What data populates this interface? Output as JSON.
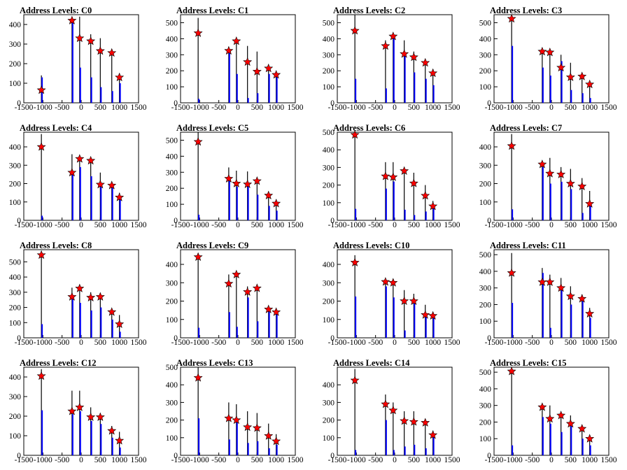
{
  "figure": {
    "x_ticks": [
      "-1500",
      "-1000",
      "-500",
      "0",
      "500",
      "1000",
      "1500"
    ],
    "xlim": [
      -1500,
      1500
    ],
    "colors": {
      "blue": "#0000ff",
      "black": "#000000",
      "star_fill": "#ff0000",
      "star_edge": "#000000"
    }
  },
  "chart_data": [
    {
      "type": "bar",
      "title": "Address Levels: C0",
      "ylim": [
        0,
        450
      ],
      "yticks": [
        100,
        200,
        300,
        400
      ],
      "x": [
        -1040,
        -240,
        -40,
        250,
        500,
        800,
        1000
      ],
      "black": [
        140,
        430,
        440,
        350,
        330,
        270,
        150
      ],
      "blue": [
        130,
        420,
        180,
        130,
        80,
        60,
        100
      ],
      "stars": [
        65,
        420,
        330,
        315,
        265,
        255,
        130
      ]
    },
    {
      "type": "bar",
      "title": "Address Levels: C1",
      "ylim": [
        0,
        550
      ],
      "yticks": [
        100,
        200,
        300,
        400,
        500
      ],
      "x": [
        -1040,
        -240,
        -40,
        250,
        500,
        800,
        1000
      ],
      "black": [
        530,
        350,
        400,
        355,
        320,
        210,
        180
      ],
      "blue": [
        25,
        330,
        180,
        30,
        60,
        180,
        160
      ],
      "stars": [
        435,
        325,
        385,
        255,
        195,
        215,
        175
      ]
    },
    {
      "type": "bar",
      "title": "Address Levels: C2",
      "ylim": [
        0,
        550
      ],
      "yticks": [
        100,
        200,
        300,
        400,
        500
      ],
      "x": [
        -1040,
        -240,
        -40,
        250,
        500,
        800,
        1000
      ],
      "black": [
        550,
        390,
        420,
        390,
        320,
        260,
        210
      ],
      "blue": [
        150,
        90,
        410,
        300,
        190,
        150,
        110
      ],
      "stars": [
        450,
        355,
        415,
        305,
        285,
        250,
        185
      ]
    },
    {
      "type": "bar",
      "title": "Address Levels: C3",
      "ylim": [
        0,
        550
      ],
      "yticks": [
        100,
        200,
        300,
        400,
        500
      ],
      "x": [
        -1040,
        -240,
        -40,
        250,
        500,
        800,
        1000
      ],
      "black": [
        540,
        330,
        320,
        300,
        250,
        180,
        130
      ],
      "blue": [
        355,
        220,
        170,
        260,
        80,
        60,
        30
      ],
      "stars": [
        525,
        320,
        315,
        220,
        160,
        165,
        115
      ]
    },
    {
      "type": "bar",
      "title": "Address Levels: C4",
      "ylim": [
        0,
        480
      ],
      "yticks": [
        100,
        200,
        300,
        400
      ],
      "x": [
        -1040,
        -240,
        -40,
        250,
        500,
        800,
        1000
      ],
      "black": [
        470,
        360,
        350,
        340,
        260,
        200,
        150
      ],
      "blue": [
        25,
        260,
        290,
        240,
        190,
        180,
        120
      ],
      "stars": [
        400,
        260,
        335,
        325,
        195,
        190,
        125
      ]
    },
    {
      "type": "bar",
      "title": "Address Levels: C5",
      "ylim": [
        0,
        550
      ],
      "yticks": [
        100,
        200,
        300,
        400,
        500
      ],
      "x": [
        -1040,
        -240,
        -40,
        250,
        500,
        800,
        1000
      ],
      "black": [
        550,
        330,
        310,
        305,
        260,
        180,
        130
      ],
      "blue": [
        35,
        250,
        210,
        220,
        160,
        90,
        60
      ],
      "stars": [
        490,
        260,
        230,
        225,
        245,
        155,
        105
      ]
    },
    {
      "type": "bar",
      "title": "Address Levels: C6",
      "ylim": [
        0,
        500
      ],
      "yticks": [
        100,
        200,
        300,
        400,
        500
      ],
      "x": [
        -1040,
        -240,
        -40,
        250,
        500,
        800,
        1000
      ],
      "black": [
        500,
        330,
        330,
        300,
        270,
        200,
        110
      ],
      "blue": [
        65,
        180,
        220,
        60,
        30,
        50,
        80
      ],
      "stars": [
        485,
        250,
        245,
        280,
        210,
        140,
        80
      ]
    },
    {
      "type": "bar",
      "title": "Address Levels: C7",
      "ylim": [
        0,
        480
      ],
      "yticks": [
        100,
        200,
        300,
        400
      ],
      "x": [
        -1040,
        -240,
        -40,
        250,
        500,
        800,
        1000
      ],
      "black": [
        470,
        320,
        340,
        290,
        280,
        230,
        160
      ],
      "blue": [
        60,
        290,
        200,
        210,
        170,
        40,
        90
      ],
      "stars": [
        405,
        305,
        255,
        250,
        200,
        185,
        90
      ]
    },
    {
      "type": "bar",
      "title": "Address Levels: C8",
      "ylim": [
        0,
        580
      ],
      "yticks": [
        100,
        200,
        300,
        400,
        500
      ],
      "x": [
        -1040,
        -240,
        -40,
        250,
        500,
        800,
        1000
      ],
      "black": [
        560,
        330,
        310,
        300,
        290,
        190,
        150
      ],
      "blue": [
        90,
        280,
        230,
        180,
        200,
        120,
        40
      ],
      "stars": [
        545,
        270,
        325,
        265,
        270,
        170,
        90
      ]
    },
    {
      "type": "bar",
      "title": "Address Levels: C9",
      "ylim": [
        0,
        480
      ],
      "yticks": [
        100,
        200,
        300,
        400
      ],
      "x": [
        -1040,
        -240,
        -40,
        250,
        500,
        800,
        1000
      ],
      "black": [
        460,
        345,
        350,
        280,
        265,
        170,
        150
      ],
      "blue": [
        55,
        140,
        60,
        220,
        90,
        150,
        130
      ],
      "stars": [
        440,
        295,
        345,
        250,
        270,
        155,
        140
      ]
    },
    {
      "type": "bar",
      "title": "Address Levels: C10",
      "ylim": [
        0,
        480
      ],
      "yticks": [
        100,
        200,
        300,
        400
      ],
      "x": [
        -1040,
        -240,
        -40,
        250,
        500,
        800,
        1000
      ],
      "black": [
        450,
        310,
        290,
        260,
        240,
        180,
        130
      ],
      "blue": [
        225,
        280,
        220,
        40,
        200,
        120,
        120
      ],
      "stars": [
        410,
        305,
        300,
        200,
        200,
        125,
        120
      ]
    },
    {
      "type": "bar",
      "title": "Address Levels: C11",
      "ylim": [
        0,
        530
      ],
      "yticks": [
        100,
        200,
        300,
        400,
        500
      ],
      "x": [
        -1040,
        -240,
        -40,
        250,
        500,
        800,
        1000
      ],
      "black": [
        510,
        420,
        380,
        360,
        310,
        260,
        180
      ],
      "blue": [
        210,
        390,
        60,
        290,
        200,
        220,
        120
      ],
      "stars": [
        390,
        335,
        335,
        300,
        250,
        235,
        145
      ]
    },
    {
      "type": "bar",
      "title": "Address Levels: C12",
      "ylim": [
        0,
        450
      ],
      "yticks": [
        100,
        200,
        300,
        400
      ],
      "x": [
        -1040,
        -240,
        -40,
        250,
        500,
        800,
        1000
      ],
      "black": [
        440,
        330,
        330,
        245,
        215,
        150,
        120
      ],
      "blue": [
        230,
        210,
        225,
        175,
        160,
        90,
        40
      ],
      "stars": [
        405,
        225,
        245,
        195,
        195,
        125,
        75
      ]
    },
    {
      "type": "bar",
      "title": "Address Levels: C13",
      "ylim": [
        0,
        500
      ],
      "yticks": [
        100,
        200,
        300,
        400,
        500
      ],
      "x": [
        -1040,
        -240,
        -40,
        250,
        500,
        800,
        1000
      ],
      "black": [
        500,
        300,
        290,
        250,
        240,
        180,
        120
      ],
      "blue": [
        210,
        90,
        200,
        70,
        80,
        40,
        60
      ],
      "stars": [
        440,
        210,
        200,
        160,
        155,
        110,
        80
      ]
    },
    {
      "type": "bar",
      "title": "Address Levels: C14",
      "ylim": [
        0,
        500
      ],
      "yticks": [
        100,
        200,
        300,
        400
      ],
      "x": [
        -1040,
        -240,
        -40,
        250,
        500,
        800,
        1000
      ],
      "black": [
        490,
        345,
        300,
        250,
        250,
        200,
        140
      ],
      "blue": [
        30,
        200,
        30,
        50,
        60,
        40,
        110
      ],
      "stars": [
        425,
        290,
        255,
        195,
        190,
        185,
        115
      ]
    },
    {
      "type": "bar",
      "title": "Address Levels: C15",
      "ylim": [
        0,
        530
      ],
      "yticks": [
        100,
        200,
        300,
        400,
        500
      ],
      "x": [
        -1040,
        -240,
        -40,
        250,
        500,
        800,
        1000
      ],
      "black": [
        520,
        300,
        300,
        250,
        240,
        180,
        120
      ],
      "blue": [
        60,
        230,
        190,
        140,
        200,
        100,
        60
      ],
      "stars": [
        505,
        290,
        220,
        240,
        190,
        160,
        100
      ]
    }
  ]
}
